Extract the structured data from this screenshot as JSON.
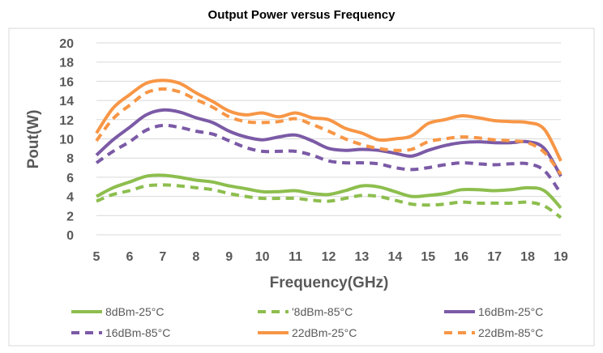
{
  "chart_data": {
    "type": "line",
    "title": "Output Power versus Frequency",
    "xlabel": "Frequency(GHz)",
    "ylabel": "Pout(W)",
    "xlim": [
      5,
      19
    ],
    "ylim": [
      0,
      20
    ],
    "yticks": [
      "0",
      "2",
      "4",
      "6",
      "8",
      "10",
      "12",
      "14",
      "16",
      "18",
      "20"
    ],
    "xticks": [
      "5",
      "6",
      "7",
      "8",
      "9",
      "10",
      "11",
      "12",
      "13",
      "14",
      "15",
      "16",
      "17",
      "18",
      "19"
    ],
    "x": [
      5,
      5.5,
      6,
      6.5,
      7,
      7.5,
      8,
      8.5,
      9,
      9.5,
      10,
      10.5,
      11,
      11.5,
      12,
      12.5,
      13,
      13.5,
      14,
      14.5,
      15,
      15.5,
      16,
      16.5,
      17,
      17.5,
      18,
      18.5,
      19
    ],
    "grid": true,
    "legend_position": "bottom",
    "series": [
      {
        "name": "8dBm-25°C",
        "legend_label": "8dBm-25°C",
        "color": "#8DBE4E",
        "style": "solid",
        "values": [
          4.0,
          4.9,
          5.5,
          6.1,
          6.2,
          6.0,
          5.7,
          5.5,
          5.1,
          4.8,
          4.5,
          4.5,
          4.6,
          4.3,
          4.2,
          4.6,
          5.1,
          5.0,
          4.5,
          4.0,
          4.1,
          4.3,
          4.7,
          4.7,
          4.6,
          4.7,
          4.9,
          4.6,
          2.8
        ]
      },
      {
        "name": "8dBm-85°C",
        "legend_label": "'8dBm-85°C",
        "color": "#8DBE4E",
        "style": "dashed",
        "values": [
          3.5,
          4.2,
          4.6,
          5.1,
          5.2,
          5.1,
          4.9,
          4.7,
          4.3,
          4.0,
          3.8,
          3.8,
          3.8,
          3.6,
          3.5,
          3.8,
          4.1,
          4.0,
          3.6,
          3.2,
          3.1,
          3.2,
          3.4,
          3.3,
          3.3,
          3.3,
          3.4,
          3.0,
          1.8
        ]
      },
      {
        "name": "16dBm-25°C",
        "legend_label": "16dBm-25°C",
        "color": "#7B5AA6",
        "style": "solid",
        "values": [
          8.3,
          9.9,
          11.2,
          12.5,
          13.0,
          12.8,
          12.2,
          11.7,
          10.8,
          10.2,
          9.9,
          10.2,
          10.4,
          9.8,
          9.0,
          8.8,
          8.9,
          8.8,
          8.5,
          8.2,
          8.8,
          9.3,
          9.6,
          9.7,
          9.6,
          9.6,
          9.7,
          9.0,
          6.1
        ]
      },
      {
        "name": "16dBm-85°C",
        "legend_label": "16dBm-85°C",
        "color": "#7B5AA6",
        "style": "dashed",
        "values": [
          7.5,
          8.7,
          9.7,
          10.9,
          11.4,
          11.2,
          10.8,
          10.5,
          9.8,
          9.1,
          8.7,
          8.7,
          8.7,
          8.3,
          7.7,
          7.5,
          7.5,
          7.4,
          7.0,
          6.8,
          7.0,
          7.3,
          7.5,
          7.4,
          7.3,
          7.4,
          7.4,
          6.7,
          4.3
        ]
      },
      {
        "name": "22dBm-25°C",
        "legend_label": "22dBm-25°C",
        "color": "#F79646",
        "style": "solid",
        "values": [
          10.6,
          13.2,
          14.6,
          15.8,
          16.1,
          15.8,
          14.8,
          13.9,
          12.9,
          12.5,
          12.7,
          12.3,
          12.7,
          12.2,
          12.0,
          11.1,
          10.6,
          9.9,
          10.0,
          10.3,
          11.6,
          12.0,
          12.4,
          12.2,
          11.9,
          11.8,
          11.7,
          11.0,
          7.7
        ]
      },
      {
        "name": "22dBm-85°C",
        "legend_label": "22dBm-85°C",
        "color": "#F79646",
        "style": "dashed",
        "values": [
          9.8,
          12.1,
          13.5,
          14.8,
          15.2,
          14.9,
          14.1,
          13.3,
          12.3,
          11.8,
          11.7,
          11.8,
          12.1,
          11.5,
          10.8,
          10.0,
          9.4,
          9.0,
          8.8,
          8.9,
          9.7,
          10.0,
          10.2,
          10.1,
          9.9,
          9.8,
          9.6,
          8.6,
          6.3
        ]
      }
    ]
  }
}
